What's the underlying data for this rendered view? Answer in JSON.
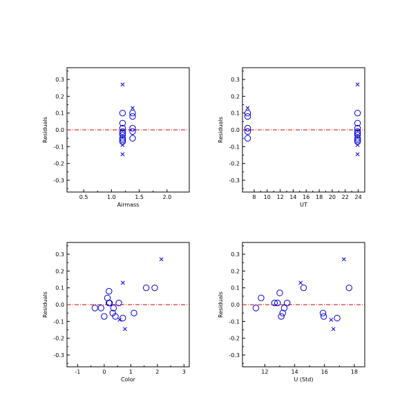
{
  "colors": {
    "marker": "#0000cc",
    "zero_line": "#cc0000",
    "axis": "#000000"
  },
  "chart_data": [
    {
      "type": "scatter",
      "xlabel": "Airmass",
      "ylabel": "Residuals",
      "xlim": [
        0.2,
        2.4
      ],
      "ylim": [
        -0.37,
        0.37
      ],
      "xticks": [
        0.5,
        1.0,
        1.5,
        2.0
      ],
      "xtick_labels": [
        "0.5",
        "1.0",
        "1.5",
        "2.0"
      ],
      "yticks": [
        -0.3,
        -0.2,
        -0.1,
        0.0,
        0.1,
        0.2,
        0.3
      ],
      "ytick_labels": [
        "-0.3",
        "-0.2",
        "-0.1",
        "0.0",
        "0.1",
        "0.2",
        "0.3"
      ],
      "zero_line": 0,
      "series": [
        {
          "marker": "circle",
          "points": [
            [
              1.2,
              0.1
            ],
            [
              1.2,
              0.04
            ],
            [
              1.2,
              0.01
            ],
            [
              1.2,
              -0.01
            ],
            [
              1.2,
              -0.02
            ],
            [
              1.2,
              -0.03
            ],
            [
              1.2,
              -0.05
            ],
            [
              1.2,
              -0.06
            ],
            [
              1.2,
              -0.07
            ],
            [
              1.38,
              0.1
            ],
            [
              1.38,
              0.08
            ],
            [
              1.38,
              0.01
            ],
            [
              1.38,
              -0.01
            ],
            [
              1.38,
              -0.05
            ]
          ]
        },
        {
          "marker": "x",
          "points": [
            [
              1.2,
              0.27
            ],
            [
              1.2,
              -0.09
            ],
            [
              1.2,
              -0.145
            ],
            [
              1.38,
              0.13
            ]
          ]
        }
      ]
    },
    {
      "type": "scatter",
      "xlabel": "UT",
      "ylabel": "Residuals",
      "xlim": [
        6.2,
        25.0
      ],
      "ylim": [
        -0.37,
        0.37
      ],
      "xticks": [
        8,
        10,
        12,
        14,
        16,
        18,
        20,
        22,
        24
      ],
      "xtick_labels": [
        "8",
        "10",
        "12",
        "14",
        "16",
        "18",
        "20",
        "22",
        "24"
      ],
      "yticks": [
        -0.3,
        -0.2,
        -0.1,
        0.0,
        0.1,
        0.2,
        0.3
      ],
      "ytick_labels": [
        "-0.3",
        "-0.2",
        "-0.1",
        "0.0",
        "0.1",
        "0.2",
        "0.3"
      ],
      "zero_line": 0,
      "series": [
        {
          "marker": "circle",
          "points": [
            [
              7.0,
              0.1
            ],
            [
              7.0,
              0.08
            ],
            [
              7.0,
              0.01
            ],
            [
              7.0,
              -0.01
            ],
            [
              7.0,
              -0.05
            ],
            [
              23.9,
              0.1
            ],
            [
              23.9,
              0.04
            ],
            [
              23.9,
              0.01
            ],
            [
              23.9,
              -0.01
            ],
            [
              23.9,
              -0.02
            ],
            [
              23.9,
              -0.03
            ],
            [
              23.9,
              -0.05
            ],
            [
              23.9,
              -0.06
            ],
            [
              23.9,
              -0.07
            ]
          ]
        },
        {
          "marker": "x",
          "points": [
            [
              7.0,
              0.13
            ],
            [
              23.9,
              0.27
            ],
            [
              23.9,
              -0.09
            ],
            [
              23.9,
              -0.145
            ]
          ]
        }
      ]
    },
    {
      "type": "scatter",
      "xlabel": "Color",
      "ylabel": "Residuals",
      "xlim": [
        -1.4,
        3.2
      ],
      "ylim": [
        -0.37,
        0.37
      ],
      "xticks": [
        -1,
        0,
        1,
        2,
        3
      ],
      "xtick_labels": [
        "-1",
        "0",
        "1",
        "2",
        "3"
      ],
      "yticks": [
        -0.3,
        -0.2,
        -0.1,
        0.0,
        0.1,
        0.2,
        0.3
      ],
      "ytick_labels": [
        "-0.3",
        "-0.2",
        "-0.1",
        "0.0",
        "0.1",
        "0.2",
        "0.3"
      ],
      "zero_line": 0,
      "series": [
        {
          "marker": "circle",
          "points": [
            [
              -0.35,
              -0.02
            ],
            [
              -0.12,
              -0.02
            ],
            [
              0.0,
              -0.07
            ],
            [
              0.12,
              0.04
            ],
            [
              0.18,
              0.08
            ],
            [
              0.18,
              0.01
            ],
            [
              0.2,
              0.01
            ],
            [
              0.32,
              -0.05
            ],
            [
              0.35,
              -0.02
            ],
            [
              0.42,
              -0.07
            ],
            [
              0.55,
              0.01
            ],
            [
              0.7,
              -0.08
            ],
            [
              1.12,
              -0.05
            ],
            [
              1.58,
              0.1
            ],
            [
              1.9,
              0.1
            ]
          ]
        },
        {
          "marker": "x",
          "points": [
            [
              2.15,
              0.27
            ],
            [
              0.7,
              0.13
            ],
            [
              0.78,
              -0.145
            ],
            [
              0.58,
              -0.09
            ]
          ]
        }
      ]
    },
    {
      "type": "scatter",
      "xlabel": "U (Std)",
      "ylabel": "Residuals",
      "xlim": [
        10.5,
        18.7
      ],
      "ylim": [
        -0.37,
        0.37
      ],
      "xticks": [
        12,
        14,
        16,
        18
      ],
      "xtick_labels": [
        "12",
        "14",
        "16",
        "18"
      ],
      "yticks": [
        -0.3,
        -0.2,
        -0.1,
        0.0,
        0.1,
        0.2,
        0.3
      ],
      "ytick_labels": [
        "-0.3",
        "-0.2",
        "-0.1",
        "0.0",
        "0.1",
        "0.2",
        "0.3"
      ],
      "zero_line": 0,
      "series": [
        {
          "marker": "circle",
          "points": [
            [
              11.4,
              -0.02
            ],
            [
              11.75,
              0.04
            ],
            [
              12.65,
              0.01
            ],
            [
              12.85,
              0.01
            ],
            [
              13.0,
              0.07
            ],
            [
              13.1,
              -0.07
            ],
            [
              13.2,
              -0.05
            ],
            [
              13.3,
              -0.02
            ],
            [
              13.5,
              0.01
            ],
            [
              14.6,
              0.1
            ],
            [
              15.9,
              -0.05
            ],
            [
              15.95,
              -0.07
            ],
            [
              16.85,
              -0.08
            ],
            [
              17.65,
              0.1
            ]
          ]
        },
        {
          "marker": "x",
          "points": [
            [
              14.4,
              0.13
            ],
            [
              17.3,
              0.27
            ],
            [
              16.45,
              -0.09
            ],
            [
              16.6,
              -0.145
            ]
          ]
        }
      ]
    }
  ]
}
